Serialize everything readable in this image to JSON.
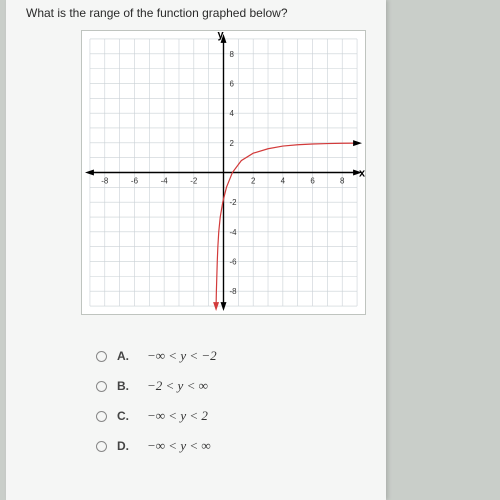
{
  "question": "What is the range of the function graphed below?",
  "axes": {
    "x_label": "x",
    "y_label": "y",
    "xlim": [
      -9,
      9
    ],
    "ylim": [
      -9,
      9
    ],
    "xtick_labels": [
      "-8",
      "-6",
      "-4",
      "-2",
      "2",
      "4",
      "6",
      "8"
    ],
    "xtick_values": [
      -8,
      -6,
      -4,
      -2,
      2,
      4,
      6,
      8
    ],
    "ytick_labels": [
      "8",
      "6",
      "4",
      "2",
      "-2",
      "-4",
      "-6",
      "-8"
    ],
    "ytick_values": [
      8,
      6,
      4,
      2,
      -2,
      -4,
      -6,
      -8
    ],
    "grid_step": 1,
    "grid_color": "#c9d0d5",
    "axis_color": "#000000",
    "background_color": "#ffffff",
    "tick_fontsize": 8
  },
  "curve": {
    "color": "#d23a3a",
    "width": 1.2,
    "points": [
      [
        -0.5,
        -9
      ],
      [
        -0.48,
        -8
      ],
      [
        -0.45,
        -7
      ],
      [
        -0.42,
        -6
      ],
      [
        -0.38,
        -5
      ],
      [
        -0.32,
        -4
      ],
      [
        -0.22,
        -3
      ],
      [
        -0.05,
        -2
      ],
      [
        0.2,
        -1
      ],
      [
        0.6,
        0
      ],
      [
        1.2,
        0.8
      ],
      [
        2,
        1.3
      ],
      [
        3,
        1.6
      ],
      [
        4,
        1.78
      ],
      [
        5,
        1.87
      ],
      [
        6,
        1.92
      ],
      [
        7,
        1.95
      ],
      [
        8,
        1.97
      ],
      [
        9,
        1.98
      ]
    ],
    "arrow_end": [
      9,
      1.98
    ]
  },
  "answers": [
    {
      "letter": "A.",
      "expr": "−∞ < y < −2"
    },
    {
      "letter": "B.",
      "expr": "−2 < y < ∞"
    },
    {
      "letter": "C.",
      "expr": "−∞ < y < 2"
    },
    {
      "letter": "D.",
      "expr": "−∞ < y < ∞"
    }
  ]
}
